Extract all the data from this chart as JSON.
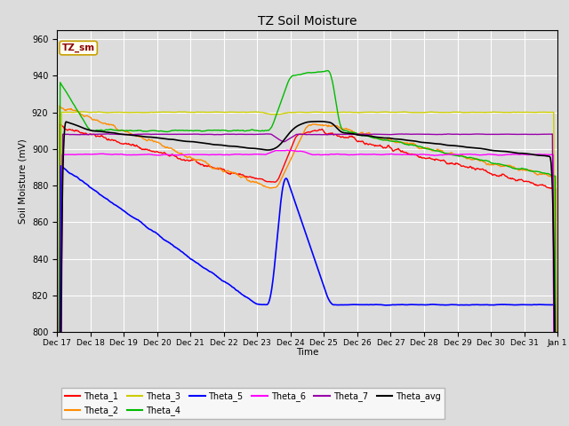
{
  "title": "TZ Soil Moisture",
  "xlabel": "Time",
  "ylabel": "Soil Moisture (mV)",
  "ylim": [
    800,
    965
  ],
  "background_color": "#dcdcdc",
  "plot_bg_color": "#dcdcdc",
  "grid_color": "#ffffff",
  "legend_label": "TZ_sm",
  "legend_text_color": "#8b0000",
  "legend_bg": "#fffff0",
  "legend_border": "#c8a000",
  "series_colors": {
    "Theta_1": "#ff0000",
    "Theta_2": "#ff8c00",
    "Theta_3": "#cccc00",
    "Theta_4": "#00bb00",
    "Theta_5": "#0000ff",
    "Theta_6": "#ff00ff",
    "Theta_7": "#9900aa",
    "Theta_avg": "#000000"
  },
  "yticks": [
    800,
    820,
    840,
    860,
    880,
    900,
    920,
    940,
    960
  ],
  "xtick_labels": [
    "Dec 17",
    "Dec 18",
    "Dec 19",
    "Dec 20",
    "Dec 21",
    "Dec 22",
    "Dec 23",
    "Dec 24",
    "Dec 25",
    "Dec 26",
    "Dec 27",
    "Dec 28",
    "Dec 29",
    "Dec 30",
    "Dec 31",
    "Jan 1"
  ],
  "fig_width": 6.4,
  "fig_height": 4.8,
  "dpi": 100
}
